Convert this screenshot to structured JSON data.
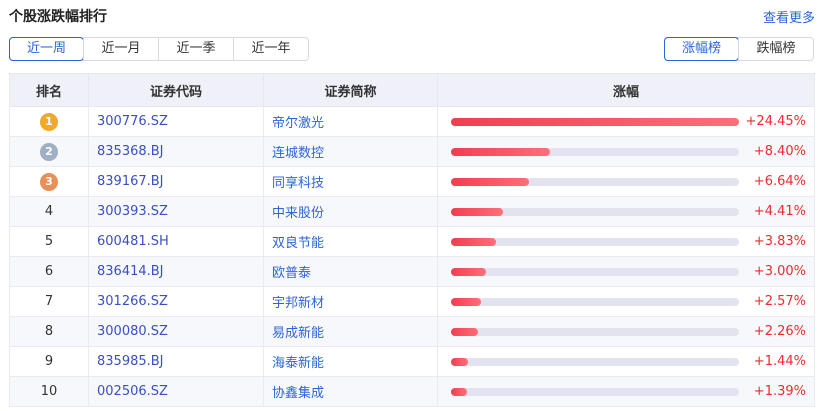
{
  "title": "个股涨跌幅排行",
  "more_label": "查看更多",
  "period_tabs": [
    {
      "label": "近一周",
      "active": true
    },
    {
      "label": "近一月"
    },
    {
      "label": "近一季"
    },
    {
      "label": "近一年"
    }
  ],
  "rank_tabs": [
    {
      "label": "涨幅榜",
      "active": true
    },
    {
      "label": "跌幅榜"
    }
  ],
  "columns": [
    "排名",
    "证券代码",
    "证券简称",
    "涨幅"
  ],
  "medal_colors": [
    "#f0a92a",
    "#9fb0c4",
    "#e8905a"
  ],
  "rows": [
    {
      "rank": "1",
      "code": "300776.SZ",
      "name": "帝尔激光",
      "change": "+24.45%",
      "value": 24.45
    },
    {
      "rank": "2",
      "code": "835368.BJ",
      "name": "连城数控",
      "change": "+8.40%",
      "value": 8.4
    },
    {
      "rank": "3",
      "code": "839167.BJ",
      "name": "同享科技",
      "change": "+6.64%",
      "value": 6.64
    },
    {
      "rank": "4",
      "code": "300393.SZ",
      "name": "中来股份",
      "change": "+4.41%",
      "value": 4.41
    },
    {
      "rank": "5",
      "code": "600481.SH",
      "name": "双良节能",
      "change": "+3.83%",
      "value": 3.83
    },
    {
      "rank": "6",
      "code": "836414.BJ",
      "name": "欧普泰",
      "change": "+3.00%",
      "value": 3.0
    },
    {
      "rank": "7",
      "code": "301266.SZ",
      "name": "宇邦新材",
      "change": "+2.57%",
      "value": 2.57
    },
    {
      "rank": "8",
      "code": "300080.SZ",
      "name": "易成新能",
      "change": "+2.26%",
      "value": 2.26
    },
    {
      "rank": "9",
      "code": "835985.BJ",
      "name": "海泰新能",
      "change": "+1.44%",
      "value": 1.44
    },
    {
      "rank": "10",
      "code": "002506.SZ",
      "name": "协鑫集成",
      "change": "+1.39%",
      "value": 1.39
    }
  ]
}
